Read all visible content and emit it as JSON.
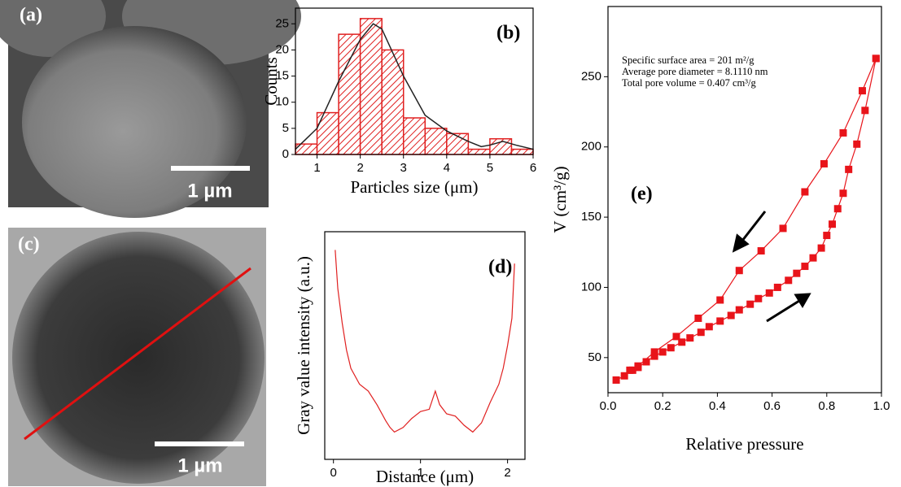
{
  "images": [
    {
      "label": "(a)",
      "scale_bar": "1 µm"
    },
    {
      "label": "(c)",
      "scale_bar": "1 µm"
    }
  ],
  "chart_data": [
    {
      "type": "histogram",
      "label": "(b)",
      "x_label": "Particles size (μm)",
      "y_label": "Counts",
      "bins": [
        0.5,
        1,
        1.5,
        2,
        2.5,
        3,
        3.5,
        4,
        4.5,
        5,
        5.5,
        6
      ],
      "values": [
        2,
        8,
        23,
        26,
        20,
        7,
        5,
        4,
        1,
        3,
        1
      ],
      "color": "#e02020",
      "fit": {
        "color": "#222222",
        "x": [
          0.5,
          1,
          1.5,
          2,
          2.3,
          2.5,
          3,
          3.5,
          4,
          4.5,
          4.8,
          5,
          5.3,
          5.6,
          6
        ],
        "values": [
          1,
          5,
          14,
          22,
          25,
          24,
          15,
          7.5,
          4.5,
          2.5,
          1.5,
          1.8,
          2.5,
          1.8,
          1
        ]
      },
      "xlim": [
        0.5,
        6
      ],
      "ylim": [
        0,
        28
      ],
      "xticks": [
        1,
        2,
        3,
        4,
        5,
        6
      ],
      "yticks": [
        0,
        5,
        10,
        15,
        20,
        25
      ]
    },
    {
      "type": "line",
      "label": "(d)",
      "x_label": "Distance (μm)",
      "y_label": "Gray value intensity (a.u.)",
      "x": [
        0.02,
        0.05,
        0.1,
        0.15,
        0.2,
        0.3,
        0.4,
        0.5,
        0.6,
        0.65,
        0.7,
        0.8,
        0.9,
        1.0,
        1.1,
        1.17,
        1.22,
        1.3,
        1.4,
        1.5,
        1.6,
        1.7,
        1.8,
        1.9,
        1.95,
        2.0,
        2.05,
        2.08
      ],
      "series": [
        {
          "name": "profile",
          "color": "#e02020",
          "values": [
            92,
            75,
            60,
            48,
            40,
            33,
            30,
            24,
            17,
            14,
            12,
            14,
            18,
            21,
            22,
            30,
            24,
            20,
            19,
            15,
            12,
            16,
            25,
            33,
            40,
            50,
            62,
            86
          ]
        }
      ],
      "xlim": [
        -0.1,
        2.2
      ],
      "ylim": [
        0,
        100
      ],
      "xticks": [
        0,
        1,
        2
      ]
    },
    {
      "type": "line",
      "label": "(e)",
      "x_label": "Relative pressure",
      "y_label": "V (cm³/g)",
      "annotations": [
        "Specific surface area =  201 m²/g",
        "Average pore diameter = 8.1110 nm",
        "Total pore volume = 0.407 cm³/g"
      ],
      "series": [
        {
          "name": "adsorption",
          "color": "#e8141a",
          "x": [
            0.03,
            0.06,
            0.09,
            0.11,
            0.14,
            0.17,
            0.2,
            0.23,
            0.27,
            0.3,
            0.34,
            0.37,
            0.41,
            0.45,
            0.48,
            0.52,
            0.55,
            0.59,
            0.62,
            0.66,
            0.69,
            0.72,
            0.75,
            0.78,
            0.8,
            0.82,
            0.84,
            0.86,
            0.88,
            0.91,
            0.94,
            0.98
          ],
          "values": [
            34,
            37,
            41,
            43,
            47,
            51,
            54,
            57,
            61,
            64,
            68,
            72,
            76,
            80,
            84,
            88,
            92,
            96,
            100,
            105,
            110,
            115,
            121,
            128,
            137,
            145,
            156,
            167,
            184,
            202,
            226,
            263
          ]
        },
        {
          "name": "desorption",
          "color": "#e8141a",
          "x": [
            0.98,
            0.93,
            0.86,
            0.79,
            0.72,
            0.64,
            0.56,
            0.48,
            0.41,
            0.33,
            0.25,
            0.17,
            0.11,
            0.08
          ],
          "values": [
            263,
            240,
            210,
            188,
            168,
            142,
            126,
            112,
            91,
            78,
            65,
            54,
            44,
            41
          ]
        }
      ],
      "xlim": [
        0,
        1
      ],
      "ylim": [
        25,
        300
      ],
      "xticks": [
        {
          "value": 0,
          "label": "0.0"
        },
        0.2,
        0.4,
        0.6,
        0.8,
        {
          "value": 1,
          "label": "1.0"
        }
      ],
      "yticks": [
        50,
        100,
        150,
        200,
        250
      ]
    }
  ]
}
